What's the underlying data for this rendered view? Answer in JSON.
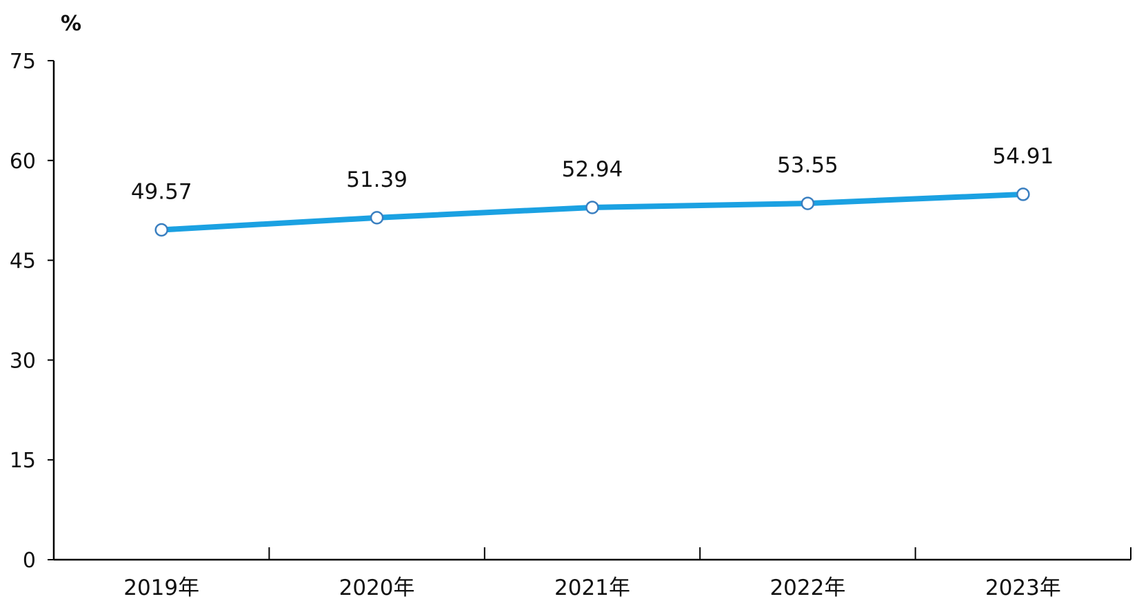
{
  "chart_data": {
    "type": "line",
    "title": "",
    "xlabel": "",
    "ylabel": "",
    "unit_label": "%",
    "categories": [
      "2019年",
      "2020年",
      "2021年",
      "2022年",
      "2023年"
    ],
    "series": [
      {
        "values": [
          49.57,
          51.39,
          52.94,
          53.55,
          54.91
        ],
        "labels": [
          "49.57",
          "51.39",
          "52.94",
          "53.55",
          "54.91"
        ],
        "color": "#1ba1e2",
        "marker_stroke": "#3a7fc0"
      }
    ],
    "ylim": [
      0,
      75
    ],
    "yticks": [
      "0",
      "15",
      "30",
      "45",
      "60",
      "75"
    ],
    "grid": false,
    "legend": "none"
  }
}
